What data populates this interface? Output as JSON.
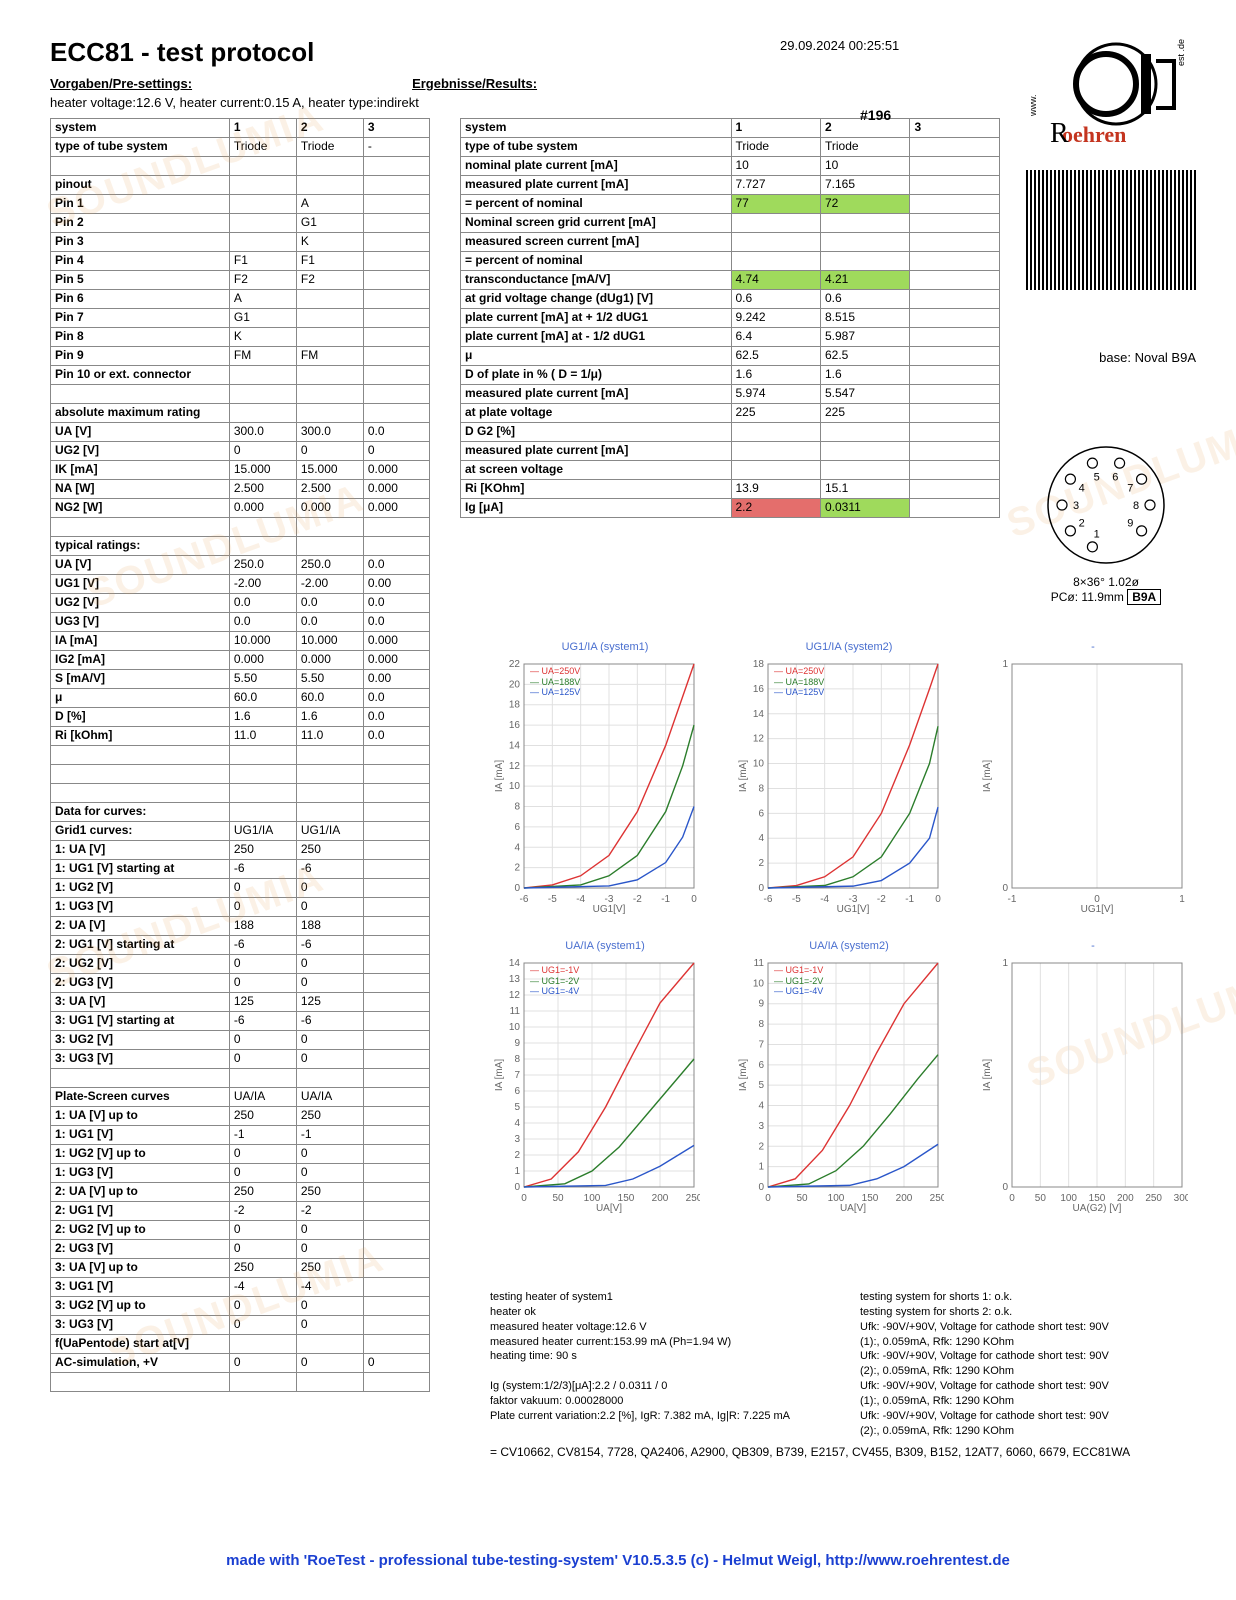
{
  "timestamp": "29.09.2024  00:25:51",
  "title": "ECC81  -  test protocol",
  "presettings_label": "Vorgaben/Pre-settings:",
  "results_label": "Ergebnisse/Results:",
  "preset_line": "heater voltage:12.6 V, heater current:0.15 A, heater type:indirekt",
  "sample_id": "#196",
  "base_label": "base: Noval B9A",
  "pin_caption1": "8×36°  1.02ø",
  "pin_caption2": "PCø: 11.9mm",
  "pin_box": "B9A",
  "left_table": {
    "header": [
      "system",
      "1",
      "2",
      "3"
    ],
    "rows": [
      [
        "type of tube system",
        "Triode",
        "Triode",
        "-",
        "b"
      ],
      [
        "",
        "",
        "",
        "",
        ""
      ],
      [
        "pinout",
        "",
        "",
        "",
        "b"
      ],
      [
        "Pin 1",
        "",
        "A",
        "",
        "b"
      ],
      [
        "Pin 2",
        "",
        "G1",
        "",
        "b"
      ],
      [
        "Pin 3",
        "",
        "K",
        "",
        "b"
      ],
      [
        "Pin 4",
        "F1",
        "F1",
        "",
        "b"
      ],
      [
        "Pin 5",
        "F2",
        "F2",
        "",
        "b"
      ],
      [
        "Pin 6",
        "A",
        "",
        "",
        "b"
      ],
      [
        "Pin 7",
        "G1",
        "",
        "",
        "b"
      ],
      [
        "Pin 8",
        "K",
        "",
        "",
        "b"
      ],
      [
        "Pin 9",
        "FM",
        "FM",
        "",
        "b"
      ],
      [
        "Pin 10 or ext. connector",
        "",
        "",
        "",
        "b"
      ],
      [
        "",
        "",
        "",
        "",
        ""
      ],
      [
        "absolute maximum rating",
        "",
        "",
        "",
        "b"
      ],
      [
        "UA [V]",
        "300.0",
        "300.0",
        "0.0",
        "b"
      ],
      [
        "UG2 [V]",
        "0",
        "0",
        "0",
        "b"
      ],
      [
        "IK [mA]",
        "15.000",
        "15.000",
        "0.000",
        "b"
      ],
      [
        "NA [W]",
        "2.500",
        "2.500",
        "0.000",
        "b"
      ],
      [
        "NG2 [W]",
        "0.000",
        "0.000",
        "0.000",
        "b"
      ],
      [
        "",
        "",
        "",
        "",
        ""
      ],
      [
        "typical ratings:",
        "",
        "",
        "",
        "b"
      ],
      [
        "UA [V]",
        "250.0",
        "250.0",
        "0.0",
        "b"
      ],
      [
        "UG1 [V]",
        "-2.00",
        "-2.00",
        "0.00",
        "b"
      ],
      [
        "UG2 [V]",
        "0.0",
        "0.0",
        "0.0",
        "b"
      ],
      [
        "UG3 [V]",
        "0.0",
        "0.0",
        "0.0",
        "b"
      ],
      [
        "IA [mA]",
        "10.000",
        "10.000",
        "0.000",
        "b"
      ],
      [
        "IG2 [mA]",
        "0.000",
        "0.000",
        "0.000",
        "b"
      ],
      [
        "S [mA/V]",
        "5.50",
        "5.50",
        "0.00",
        "b"
      ],
      [
        "μ",
        "60.0",
        "60.0",
        "0.0",
        "b"
      ],
      [
        "D [%]",
        "1.6",
        "1.6",
        "0.0",
        "b"
      ],
      [
        "Ri [kOhm]",
        "11.0",
        "11.0",
        "0.0",
        "b"
      ],
      [
        "",
        "",
        "",
        "",
        ""
      ],
      [
        "",
        "",
        "",
        "",
        ""
      ],
      [
        "",
        "",
        "",
        "",
        ""
      ],
      [
        "Data for curves:",
        "",
        "",
        "",
        "b"
      ],
      [
        "Grid1 curves:",
        "UG1/IA",
        "UG1/IA",
        "",
        "b"
      ],
      [
        "1: UA [V]",
        "250",
        "250",
        "",
        "b"
      ],
      [
        "1: UG1 [V] starting at",
        "-6",
        "-6",
        "",
        "b"
      ],
      [
        "1: UG2 [V]",
        "0",
        "0",
        "",
        "b"
      ],
      [
        "1: UG3 [V]",
        "0",
        "0",
        "",
        "b"
      ],
      [
        "2: UA [V]",
        "188",
        "188",
        "",
        "b"
      ],
      [
        "2: UG1 [V] starting at",
        "-6",
        "-6",
        "",
        "b"
      ],
      [
        "2: UG2 [V]",
        "0",
        "0",
        "",
        "b"
      ],
      [
        "2: UG3 [V]",
        "0",
        "0",
        "",
        "b"
      ],
      [
        "3: UA [V]",
        "125",
        "125",
        "",
        "b"
      ],
      [
        "3: UG1 [V] starting at",
        "-6",
        "-6",
        "",
        "b"
      ],
      [
        "3: UG2 [V]",
        "0",
        "0",
        "",
        "b"
      ],
      [
        "3: UG3 [V]",
        "0",
        "0",
        "",
        "b"
      ],
      [
        "",
        "",
        "",
        "",
        ""
      ],
      [
        "Plate-Screen curves",
        "UA/IA",
        "UA/IA",
        "",
        "b"
      ],
      [
        "1: UA [V] up to",
        "250",
        "250",
        "",
        "b"
      ],
      [
        "1: UG1 [V]",
        "-1",
        "-1",
        "",
        "b"
      ],
      [
        "1: UG2 [V] up to",
        "0",
        "0",
        "",
        "b"
      ],
      [
        "1: UG3 [V]",
        "0",
        "0",
        "",
        "b"
      ],
      [
        "2: UA [V] up to",
        "250",
        "250",
        "",
        "b"
      ],
      [
        "2: UG1 [V]",
        "-2",
        "-2",
        "",
        "b"
      ],
      [
        "2: UG2 [V] up to",
        "0",
        "0",
        "",
        "b"
      ],
      [
        "2: UG3 [V]",
        "0",
        "0",
        "",
        "b"
      ],
      [
        "3: UA [V] up to",
        "250",
        "250",
        "",
        "b"
      ],
      [
        "3: UG1 [V]",
        "-4",
        "-4",
        "",
        "b"
      ],
      [
        "3: UG2 [V] up to",
        "0",
        "0",
        "",
        "b"
      ],
      [
        "3: UG3 [V]",
        "0",
        "0",
        "",
        "b"
      ],
      [
        "f(UaPentode) start at[V]",
        "",
        "",
        "",
        "b"
      ],
      [
        "AC-simulation, +V",
        "0",
        "0",
        "0",
        "b"
      ],
      [
        "",
        "",
        "",
        "",
        ""
      ]
    ]
  },
  "right_table": {
    "header": [
      "system",
      "1",
      "2",
      "3"
    ],
    "rows": [
      [
        "type of tube system",
        "Triode",
        "Triode",
        "",
        "b",
        "",
        ""
      ],
      [
        "nominal plate current [mA]",
        "10",
        "10",
        "",
        "b",
        "",
        ""
      ],
      [
        "measured plate current [mA]",
        "7.727",
        "7.165",
        "",
        "b",
        "",
        ""
      ],
      [
        "= percent of nominal",
        "77",
        "72",
        "",
        "b",
        "g",
        "g"
      ],
      [
        "Nominal screen grid current [mA]",
        "",
        "",
        "",
        "b",
        "",
        ""
      ],
      [
        "measured screen current [mA]",
        "",
        "",
        "",
        "b",
        "",
        ""
      ],
      [
        "= percent of nominal",
        "",
        "",
        "",
        "b",
        "",
        ""
      ],
      [
        "transconductance [mA/V]",
        "4.74",
        "4.21",
        "",
        "b",
        "g",
        "g"
      ],
      [
        "at grid voltage change (dUg1) [V]",
        "0.6",
        "0.6",
        "",
        "b",
        "",
        ""
      ],
      [
        "plate current [mA] at + 1/2 dUG1",
        "9.242",
        "8.515",
        "",
        "b",
        "",
        ""
      ],
      [
        "plate current [mA] at - 1/2 dUG1",
        "6.4",
        "5.987",
        "",
        "b",
        "",
        ""
      ],
      [
        "μ",
        "62.5",
        "62.5",
        "",
        "b",
        "",
        ""
      ],
      [
        "D of plate in % ( D = 1/μ)",
        "1.6",
        "1.6",
        "",
        "b",
        "",
        ""
      ],
      [
        "measured plate current [mA]",
        "5.974",
        "5.547",
        "",
        "b",
        "",
        ""
      ],
      [
        "at plate voltage",
        "225",
        "225",
        "",
        "b",
        "",
        ""
      ],
      [
        "D G2 [%]",
        "",
        "",
        "",
        "b",
        "",
        ""
      ],
      [
        "measured plate current [mA]",
        "",
        "",
        "",
        "b",
        "",
        ""
      ],
      [
        "at screen voltage",
        "",
        "",
        "",
        "b",
        "",
        ""
      ],
      [
        "Ri [KOhm]",
        "13.9",
        "15.1",
        "",
        "b",
        "",
        ""
      ],
      [
        "Ig [μA]",
        "2.2",
        "0.0311",
        "",
        "b",
        "r",
        "g"
      ]
    ]
  },
  "charts": [
    {
      "title": "UG1/IA (system1)",
      "xlabel": "UG1[V]",
      "ylabel": "IA [mA]",
      "xlim": [
        -6,
        0
      ],
      "ylim": [
        0,
        22
      ],
      "xtick": 1,
      "ytick": 2,
      "legend": [
        "UA=250V",
        "UA=188V",
        "UA=125V"
      ],
      "legend_colors": [
        "#d33",
        "#2b7d2b",
        "#2a56c9"
      ],
      "series": [
        {
          "color": "#d33",
          "pts": [
            [
              -6,
              0
            ],
            [
              -5,
              0.3
            ],
            [
              -4,
              1.2
            ],
            [
              -3,
              3.2
            ],
            [
              -2,
              7.5
            ],
            [
              -1,
              14
            ],
            [
              -0.5,
              18
            ],
            [
              0,
              22
            ]
          ]
        },
        {
          "color": "#2b7d2b",
          "pts": [
            [
              -6,
              0
            ],
            [
              -4,
              0.3
            ],
            [
              -3,
              1.2
            ],
            [
              -2,
              3.2
            ],
            [
              -1,
              7.5
            ],
            [
              -0.4,
              12
            ],
            [
              0,
              16
            ]
          ]
        },
        {
          "color": "#2a56c9",
          "pts": [
            [
              -6,
              0
            ],
            [
              -3,
              0.2
            ],
            [
              -2,
              0.8
            ],
            [
              -1,
              2.5
            ],
            [
              -0.4,
              5
            ],
            [
              0,
              8
            ]
          ]
        }
      ]
    },
    {
      "title": "UG1/IA (system2)",
      "xlabel": "UG1[V]",
      "ylabel": "IA [mA]",
      "xlim": [
        -6,
        0
      ],
      "ylim": [
        0,
        18
      ],
      "xtick": 1,
      "ytick": 2,
      "legend": [
        "UA=250V",
        "UA=188V",
        "UA=125V"
      ],
      "legend_colors": [
        "#d33",
        "#2b7d2b",
        "#2a56c9"
      ],
      "series": [
        {
          "color": "#d33",
          "pts": [
            [
              -6,
              0
            ],
            [
              -5,
              0.2
            ],
            [
              -4,
              0.9
            ],
            [
              -3,
              2.5
            ],
            [
              -2,
              6
            ],
            [
              -1,
              11.5
            ],
            [
              -0.3,
              16
            ],
            [
              0,
              18
            ]
          ]
        },
        {
          "color": "#2b7d2b",
          "pts": [
            [
              -6,
              0
            ],
            [
              -4,
              0.2
            ],
            [
              -3,
              0.9
            ],
            [
              -2,
              2.5
            ],
            [
              -1,
              6
            ],
            [
              -0.3,
              10
            ],
            [
              0,
              13
            ]
          ]
        },
        {
          "color": "#2a56c9",
          "pts": [
            [
              -6,
              0
            ],
            [
              -3,
              0.15
            ],
            [
              -2,
              0.6
            ],
            [
              -1,
              2
            ],
            [
              -0.3,
              4
            ],
            [
              0,
              6.5
            ]
          ]
        }
      ]
    },
    {
      "title": "-",
      "xlabel": "UG1[V]",
      "ylabel": "IA [mA]",
      "xlim": [
        -1,
        1
      ],
      "ylim": [
        0,
        1
      ],
      "xtick": 1,
      "ytick": 1,
      "legend": [],
      "legend_colors": [],
      "series": []
    },
    {
      "title": "UA/IA (system1)",
      "xlabel": "UA[V]",
      "ylabel": "IA [mA]",
      "xlim": [
        0,
        250
      ],
      "ylim": [
        0,
        14
      ],
      "xtick": 50,
      "ytick": 1,
      "legend": [
        "UG1=-1V",
        "UG1=-2V",
        "UG1=-4V"
      ],
      "legend_colors": [
        "#d33",
        "#2b7d2b",
        "#2a56c9"
      ],
      "series": [
        {
          "color": "#d33",
          "pts": [
            [
              0,
              0
            ],
            [
              40,
              0.5
            ],
            [
              80,
              2.2
            ],
            [
              120,
              5
            ],
            [
              160,
              8.3
            ],
            [
              200,
              11.5
            ],
            [
              250,
              14
            ]
          ]
        },
        {
          "color": "#2b7d2b",
          "pts": [
            [
              0,
              0
            ],
            [
              60,
              0.2
            ],
            [
              100,
              1
            ],
            [
              140,
              2.5
            ],
            [
              180,
              4.5
            ],
            [
              220,
              6.5
            ],
            [
              250,
              8
            ]
          ]
        },
        {
          "color": "#2a56c9",
          "pts": [
            [
              0,
              0
            ],
            [
              120,
              0.1
            ],
            [
              160,
              0.5
            ],
            [
              200,
              1.3
            ],
            [
              250,
              2.6
            ]
          ]
        }
      ]
    },
    {
      "title": "UA/IA (system2)",
      "xlabel": "UA[V]",
      "ylabel": "IA [mA]",
      "xlim": [
        0,
        250
      ],
      "ylim": [
        0,
        11
      ],
      "xtick": 50,
      "ytick": 1,
      "legend": [
        "UG1=-1V",
        "UG1=-2V",
        "UG1=-4V"
      ],
      "legend_colors": [
        "#d33",
        "#2b7d2b",
        "#2a56c9"
      ],
      "series": [
        {
          "color": "#d33",
          "pts": [
            [
              0,
              0
            ],
            [
              40,
              0.4
            ],
            [
              80,
              1.8
            ],
            [
              120,
              4
            ],
            [
              160,
              6.6
            ],
            [
              200,
              9
            ],
            [
              250,
              11
            ]
          ]
        },
        {
          "color": "#2b7d2b",
          "pts": [
            [
              0,
              0
            ],
            [
              60,
              0.15
            ],
            [
              100,
              0.8
            ],
            [
              140,
              2
            ],
            [
              180,
              3.6
            ],
            [
              220,
              5.3
            ],
            [
              250,
              6.5
            ]
          ]
        },
        {
          "color": "#2a56c9",
          "pts": [
            [
              0,
              0
            ],
            [
              120,
              0.08
            ],
            [
              160,
              0.4
            ],
            [
              200,
              1
            ],
            [
              250,
              2.1
            ]
          ]
        }
      ]
    },
    {
      "title": "-",
      "xlabel": "UA(G2) [V]",
      "ylabel": "IA [mA]",
      "xlim": [
        0,
        300
      ],
      "ylim": [
        0,
        1
      ],
      "xtick": 50,
      "ytick": 1,
      "legend": [],
      "legend_colors": [],
      "series": []
    }
  ],
  "notesA": [
    "testing heater of system1",
    "heater ok",
    "measured heater voltage:12.6 V",
    "measured heater current:153.99 mA (Ph=1.94 W)",
    "heating time: 90 s",
    "",
    "Ig (system:1/2/3)[μA]:2.2 / 0.0311 / 0",
    "faktor vakuum: 0.00028000",
    "Plate current variation:2.2 [%], IgR: 7.382 mA, Ig|R: 7.225 mA"
  ],
  "notesB": [
    "testing system for shorts 1: o.k.",
    "testing system for shorts 2: o.k.",
    "Ufk: -90V/+90V, Voltage for cathode short test: 90V",
    "(1):, 0.059mA, Rfk: 1290 KOhm",
    "Ufk: -90V/+90V, Voltage for cathode short test: 90V",
    "(2):, 0.059mA, Rfk: 1290 KOhm",
    "Ufk: -90V/+90V, Voltage for cathode short test: 90V",
    "(1):, 0.059mA, Rfk: 1290 KOhm",
    "Ufk: -90V/+90V, Voltage for cathode short test: 90V",
    "(2):, 0.059mA, Rfk: 1290 KOhm"
  ],
  "equiv": "= CV10662,  CV8154,  7728,  QA2406,  A2900, QB309, B739, E2157, CV455, B309, B152, 12AT7, 6060, 6679, ECC81WA",
  "footer": "made with 'RoeTest - professional tube-testing-system' V10.5.3.5 (c) - Helmut Weigl, http://www.roehrentest.de",
  "colors": {
    "grid": "#e0e0e0",
    "axis": "#888"
  }
}
